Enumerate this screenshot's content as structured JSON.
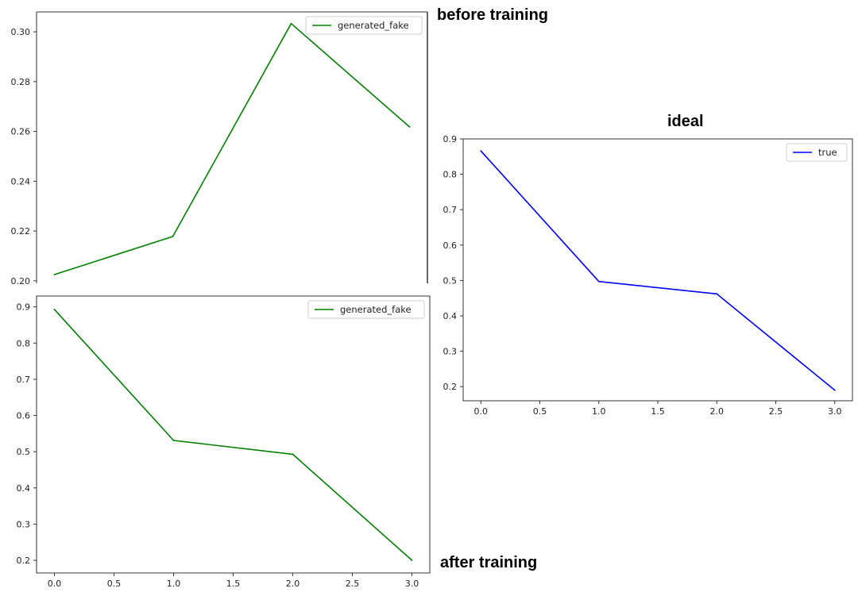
{
  "captions": {
    "before": "before training",
    "ideal": "ideal",
    "after": "after training"
  },
  "chart_data": [
    {
      "id": "before",
      "type": "line",
      "title": "",
      "xlabel": "",
      "ylabel": "",
      "x": [
        0,
        1,
        2,
        3
      ],
      "xlim": [
        -0.15,
        3.15
      ],
      "ylim": [
        0.199,
        0.308
      ],
      "xticks": [],
      "yticks": [
        "0.20",
        "0.22",
        "0.24",
        "0.26",
        "0.28",
        "0.30"
      ],
      "legend": "top-right",
      "series": [
        {
          "name": "generated_fake",
          "color": "#008000",
          "values": [
            0.2025,
            0.2178,
            0.3033,
            0.2618
          ]
        }
      ]
    },
    {
      "id": "ideal",
      "type": "line",
      "title": "",
      "xlabel": "",
      "ylabel": "",
      "x": [
        0,
        1,
        2,
        3
      ],
      "xlim": [
        -0.15,
        3.15
      ],
      "ylim": [
        0.16,
        0.9
      ],
      "xticks": [
        "0.0",
        "0.5",
        "1.0",
        "1.5",
        "2.0",
        "2.5",
        "3.0"
      ],
      "yticks": [
        "0.2",
        "0.3",
        "0.4",
        "0.5",
        "0.6",
        "0.7",
        "0.8",
        "0.9"
      ],
      "legend": "top-right",
      "series": [
        {
          "name": "true",
          "color": "#0000ff",
          "values": [
            0.866,
            0.497,
            0.462,
            0.19
          ]
        }
      ]
    },
    {
      "id": "after",
      "type": "line",
      "title": "",
      "xlabel": "",
      "ylabel": "",
      "x": [
        0,
        1,
        2,
        3
      ],
      "xlim": [
        -0.15,
        3.15
      ],
      "ylim": [
        0.165,
        0.93
      ],
      "xticks": [
        "0.0",
        "0.5",
        "1.0",
        "1.5",
        "2.0",
        "2.5",
        "3.0"
      ],
      "yticks": [
        "0.2",
        "0.3",
        "0.4",
        "0.5",
        "0.6",
        "0.7",
        "0.8",
        "0.9"
      ],
      "legend": "top-right",
      "series": [
        {
          "name": "generated_fake",
          "color": "#008000",
          "values": [
            0.893,
            0.531,
            0.493,
            0.2
          ]
        }
      ]
    }
  ]
}
